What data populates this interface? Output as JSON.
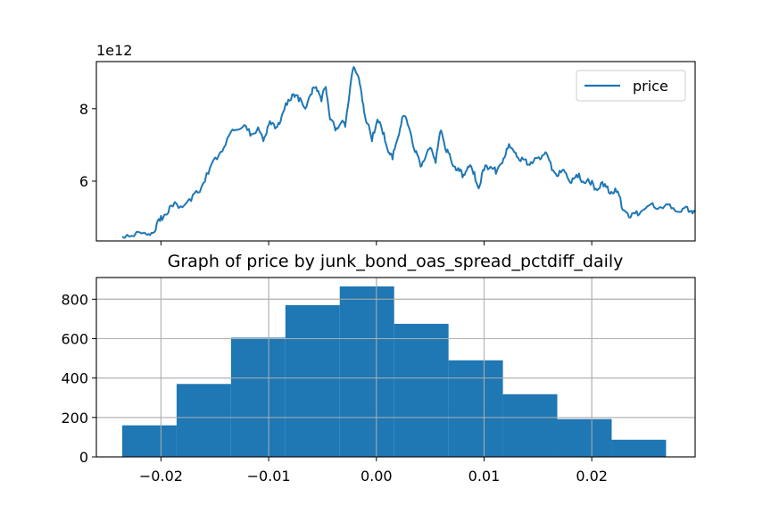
{
  "chart_data": [
    {
      "type": "line",
      "offset_label": "1e12",
      "ylim": [
        4.35,
        9.3
      ],
      "yticks": [
        {
          "value": 6,
          "label": "6"
        },
        {
          "value": 8,
          "label": "8"
        }
      ],
      "legend": {
        "placement": "top-right",
        "entries": [
          "price"
        ]
      },
      "grid": false,
      "series": [
        {
          "name": "price",
          "color": "#1f77b4",
          "points": [
            [
              -0.0236,
              4.47
            ],
            [
              -0.0225,
              4.48
            ],
            [
              -0.0213,
              4.52
            ],
            [
              -0.0206,
              4.6
            ],
            [
              -0.0201,
              4.9
            ],
            [
              -0.0196,
              5.08
            ],
            [
              -0.0189,
              5.3
            ],
            [
              -0.018,
              5.28
            ],
            [
              -0.0172,
              5.45
            ],
            [
              -0.0164,
              5.7
            ],
            [
              -0.0156,
              6.2
            ],
            [
              -0.0148,
              6.6
            ],
            [
              -0.014,
              7.0
            ],
            [
              -0.0132,
              7.4
            ],
            [
              -0.0124,
              7.5
            ],
            [
              -0.0117,
              7.25
            ],
            [
              -0.0111,
              7.4
            ],
            [
              -0.0105,
              7.1
            ],
            [
              -0.01,
              7.55
            ],
            [
              -0.0094,
              7.45
            ],
            [
              -0.0089,
              7.65
            ],
            [
              -0.0083,
              8.1
            ],
            [
              -0.0077,
              8.4
            ],
            [
              -0.0072,
              8.2
            ],
            [
              -0.0066,
              8.0
            ],
            [
              -0.006,
              8.4
            ],
            [
              -0.0056,
              8.6
            ],
            [
              -0.0051,
              8.2
            ],
            [
              -0.0047,
              8.6
            ],
            [
              -0.0043,
              7.7
            ],
            [
              -0.0038,
              7.4
            ],
            [
              -0.0033,
              7.6
            ],
            [
              -0.0029,
              7.5
            ],
            [
              -0.0025,
              8.4
            ],
            [
              -0.0021,
              9.15
            ],
            [
              -0.0017,
              8.9
            ],
            [
              -0.0013,
              8.2
            ],
            [
              -0.0009,
              7.6
            ],
            [
              -0.0004,
              7.1
            ],
            [
              0.0001,
              7.7
            ],
            [
              0.0006,
              7.3
            ],
            [
              0.0011,
              6.8
            ],
            [
              0.0015,
              6.6
            ],
            [
              0.002,
              7.2
            ],
            [
              0.0025,
              7.8
            ],
            [
              0.003,
              7.5
            ],
            [
              0.0036,
              6.8
            ],
            [
              0.0041,
              6.4
            ],
            [
              0.0046,
              6.7
            ],
            [
              0.0051,
              6.9
            ],
            [
              0.0055,
              6.5
            ],
            [
              0.006,
              7.4
            ],
            [
              0.0065,
              6.8
            ],
            [
              0.007,
              6.5
            ],
            [
              0.0075,
              6.3
            ],
            [
              0.008,
              6.1
            ],
            [
              0.0085,
              6.4
            ],
            [
              0.009,
              6.2
            ],
            [
              0.0095,
              5.8
            ],
            [
              0.01,
              6.3
            ],
            [
              0.0106,
              6.4
            ],
            [
              0.0111,
              6.2
            ],
            [
              0.0117,
              6.5
            ],
            [
              0.0122,
              6.9
            ],
            [
              0.0128,
              6.8
            ],
            [
              0.0134,
              6.55
            ],
            [
              0.014,
              6.45
            ],
            [
              0.0146,
              6.55
            ],
            [
              0.0152,
              6.6
            ],
            [
              0.0157,
              6.8
            ],
            [
              0.0163,
              6.3
            ],
            [
              0.0169,
              6.15
            ],
            [
              0.0175,
              6.25
            ],
            [
              0.0181,
              5.95
            ],
            [
              0.0187,
              6.1
            ],
            [
              0.0193,
              5.95
            ],
            [
              0.0199,
              5.9
            ],
            [
              0.0205,
              5.75
            ],
            [
              0.0211,
              5.85
            ],
            [
              0.0217,
              5.65
            ],
            [
              0.0223,
              5.7
            ],
            [
              0.0229,
              5.2
            ],
            [
              0.0236,
              5.0
            ],
            [
              0.0243,
              5.05
            ],
            [
              0.025,
              5.25
            ],
            [
              0.0258,
              5.28
            ],
            [
              0.0266,
              5.25
            ],
            [
              0.0274,
              5.25
            ],
            [
              0.0283,
              5.15
            ],
            [
              0.029,
              5.15
            ],
            [
              0.0296,
              5.15
            ]
          ]
        }
      ]
    },
    {
      "type": "bar",
      "title": "Graph of price by junk_bond_oas_spread_pctdiff_daily",
      "grid": true,
      "xlim": [
        -0.026,
        0.0296
      ],
      "ylim": [
        0,
        910
      ],
      "xticks": [
        {
          "value": -0.02,
          "label": "−0.02"
        },
        {
          "value": -0.01,
          "label": "−0.01"
        },
        {
          "value": 0.0,
          "label": "0.00"
        },
        {
          "value": 0.01,
          "label": "0.01"
        },
        {
          "value": 0.02,
          "label": "0.02"
        }
      ],
      "yticks": [
        {
          "value": 0,
          "label": "0"
        },
        {
          "value": 200,
          "label": "200"
        },
        {
          "value": 400,
          "label": "400"
        },
        {
          "value": 600,
          "label": "600"
        },
        {
          "value": 800,
          "label": "800"
        }
      ],
      "bin_edges": [
        -0.0236,
        -0.01855,
        -0.0135,
        -0.00845,
        -0.0034,
        0.00165,
        0.0067,
        0.01175,
        0.0168,
        0.02185,
        0.0269
      ],
      "values": [
        160,
        370,
        605,
        770,
        865,
        675,
        490,
        318,
        192,
        87
      ],
      "color": "#1f77b4"
    }
  ]
}
